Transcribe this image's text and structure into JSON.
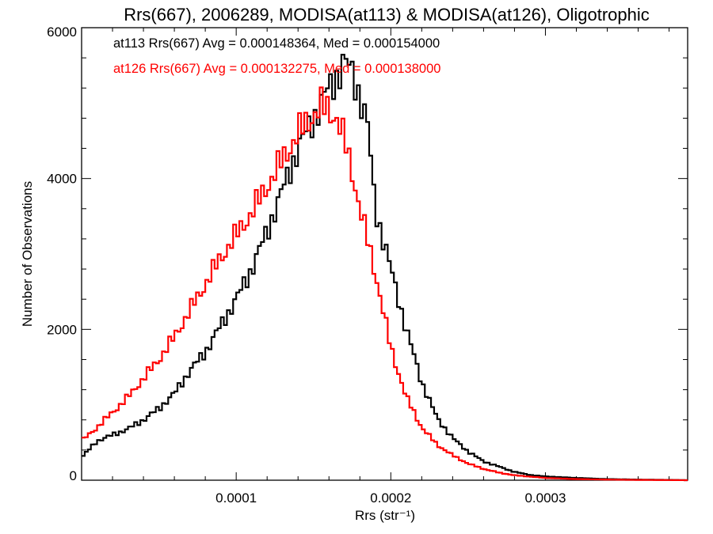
{
  "chart_data": {
    "type": "line",
    "style": "step-histogram",
    "title": "Rrs(667), 2006289, MODISA(at113) & MODISA(at126), Oligotrophic",
    "xlabel": "Rrs (str⁻¹)",
    "ylabel": "Number of Observations",
    "xlim": [
      0.0,
      0.000392
    ],
    "ylim": [
      0,
      6000
    ],
    "x_ticks": [
      {
        "value": 0.0001,
        "label": "0.0001"
      },
      {
        "value": 0.0002,
        "label": "0.0002"
      },
      {
        "value": 0.0003,
        "label": "0.0003"
      }
    ],
    "y_ticks": [
      {
        "value": 0,
        "label": "0"
      },
      {
        "value": 2000,
        "label": "2000"
      },
      {
        "value": 4000,
        "label": "4000"
      },
      {
        "value": 6000,
        "label": "6000"
      }
    ],
    "legend_position": "top-left",
    "grid": false,
    "series": [
      {
        "name": "at113",
        "color": "#000000",
        "annotation": "at113 Rrs(667) Avg = 0.000148364, Med = 0.000154000",
        "x": [
          0.0,
          1e-05,
          2e-05,
          3e-05,
          4e-05,
          5e-05,
          6e-05,
          7e-05,
          8e-05,
          9e-05,
          0.0001,
          0.00011,
          0.00012,
          0.00013,
          0.00014,
          0.00015,
          0.00016,
          0.000165,
          0.00017,
          0.000175,
          0.00018,
          0.000185,
          0.00019,
          0.0002,
          0.00021,
          0.00022,
          0.00023,
          0.00024,
          0.00025,
          0.00026,
          0.00027,
          0.00028,
          0.00029,
          0.0003,
          0.00032,
          0.00034,
          0.00036,
          0.00038,
          0.000392
        ],
        "y": [
          300,
          520,
          600,
          680,
          800,
          950,
          1150,
          1450,
          1700,
          2050,
          2400,
          2800,
          3300,
          3850,
          4400,
          4800,
          5200,
          5350,
          5550,
          5400,
          5100,
          4700,
          3600,
          2800,
          2000,
          1300,
          820,
          560,
          380,
          250,
          180,
          110,
          70,
          50,
          30,
          15,
          8,
          4,
          0
        ]
      },
      {
        "name": "at126",
        "color": "#ff0000",
        "annotation": "at126 Rrs(667) Avg = 0.000132275, Med = 0.000138000",
        "x": [
          0.0,
          1e-05,
          2e-05,
          3e-05,
          4e-05,
          5e-05,
          6e-05,
          7e-05,
          8e-05,
          9e-05,
          0.0001,
          0.00011,
          0.00012,
          0.00013,
          0.00014,
          0.00015,
          0.000155,
          0.00016,
          0.000165,
          0.00017,
          0.000175,
          0.00018,
          0.00019,
          0.0002,
          0.00021,
          0.00022,
          0.00023,
          0.00024,
          0.00025,
          0.00026,
          0.00027,
          0.00028,
          0.0003,
          0.00032,
          0.00034,
          0.00036,
          0.00038,
          0.000392
        ],
        "y": [
          520,
          700,
          900,
          1100,
          1350,
          1600,
          1900,
          2250,
          2600,
          2950,
          3250,
          3550,
          3900,
          4250,
          4600,
          4850,
          4950,
          4920,
          4800,
          4500,
          4100,
          3600,
          2750,
          1750,
          1100,
          700,
          470,
          330,
          220,
          150,
          100,
          65,
          30,
          15,
          8,
          4,
          2,
          0
        ]
      }
    ]
  }
}
